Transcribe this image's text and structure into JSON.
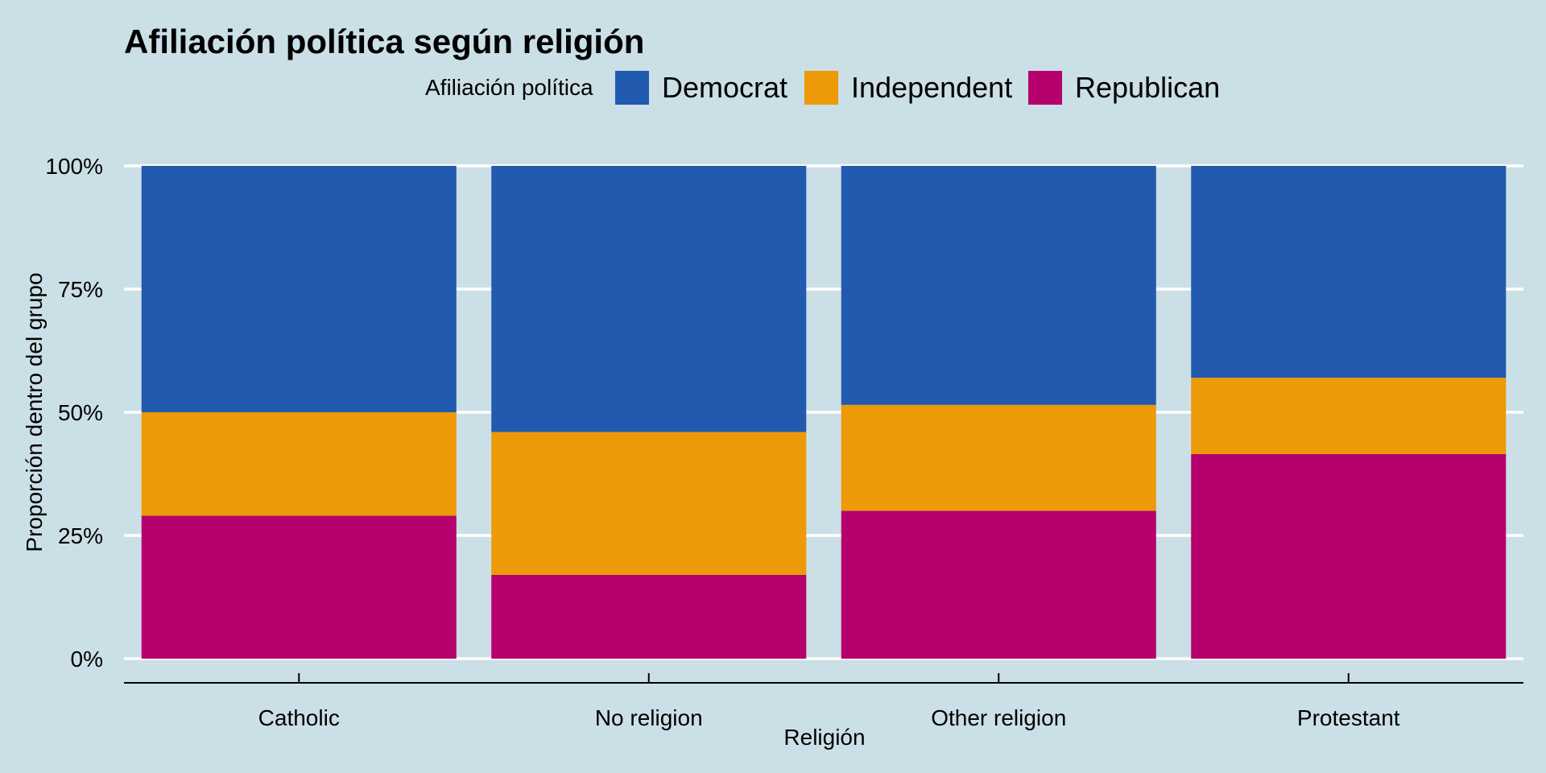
{
  "chart_data": {
    "type": "bar",
    "stacked": true,
    "normalized": true,
    "title": "Afiliación política según religión",
    "xlabel": "Religión",
    "ylabel": "Proporción dentro del grupo",
    "legend": {
      "title": "Afiliación política",
      "position": "top"
    },
    "categories": [
      "Catholic",
      "No religion",
      "Other religion",
      "Protestant"
    ],
    "series": [
      {
        "name": "Republican",
        "color": "#b5006e",
        "values": [
          0.29,
          0.17,
          0.3,
          0.415
        ]
      },
      {
        "name": "Independent",
        "color": "#ec9a08",
        "values": [
          0.21,
          0.29,
          0.215,
          0.155
        ]
      },
      {
        "name": "Democrat",
        "color": "#225aaf",
        "values": [
          0.5,
          0.54,
          0.485,
          0.43
        ]
      }
    ],
    "legend_order": [
      "Democrat",
      "Independent",
      "Republican"
    ],
    "yticks": [
      {
        "value": 0,
        "label": "0%"
      },
      {
        "value": 0.25,
        "label": "25%"
      },
      {
        "value": 0.5,
        "label": "50%"
      },
      {
        "value": 0.75,
        "label": "75%"
      },
      {
        "value": 1,
        "label": "100%"
      }
    ],
    "ylim": [
      0,
      1
    ],
    "grid": true,
    "background": "#cbdfe6"
  }
}
